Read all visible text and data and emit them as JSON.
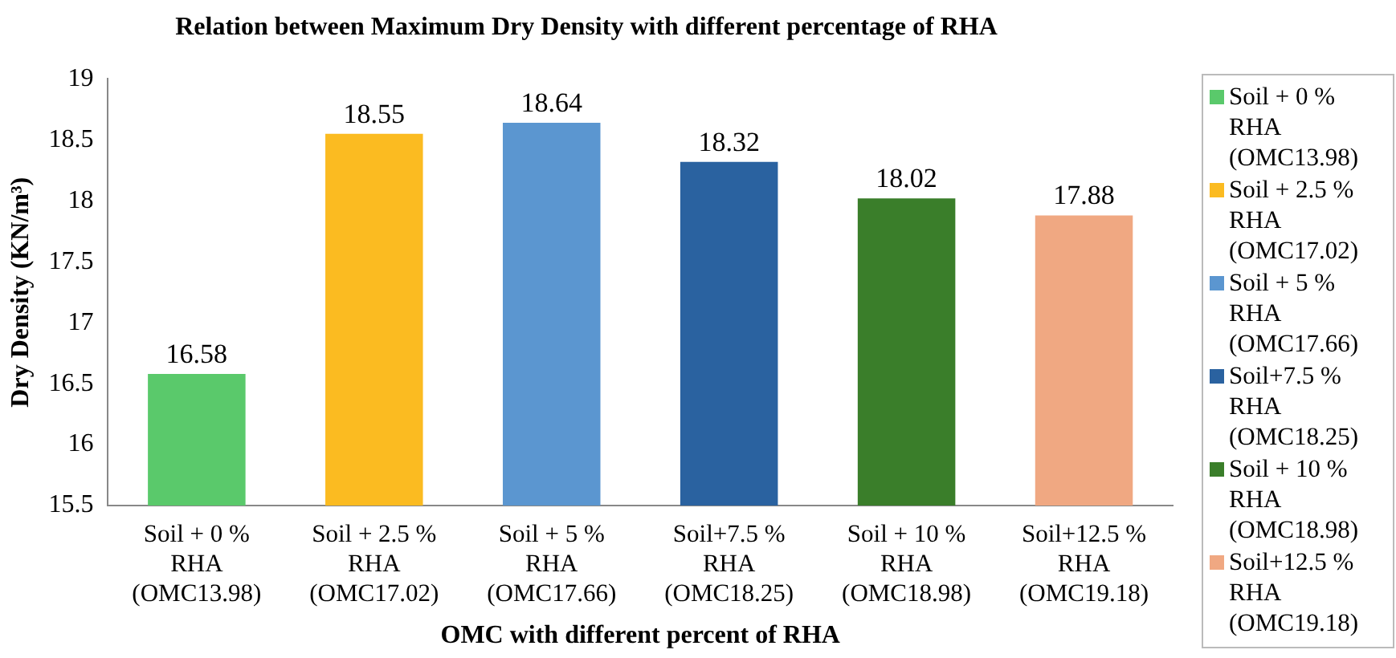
{
  "chart_data": {
    "type": "bar",
    "title": "Relation between Maximum Dry Density with different percentage of RHA",
    "xlabel": "OMC with different percent of RHA",
    "ylabel": "Dry Density (KN/m³)",
    "categories": [
      "Soil + 0 %\nRHA\n(OMC13.98)",
      "Soil + 2.5 %\nRHA\n(OMC17.02)",
      "Soil + 5 %\nRHA\n(OMC17.66)",
      "Soil+7.5 %\nRHA\n(OMC18.25)",
      "Soil + 10 %\nRHA\n(OMC18.98)",
      "Soil+12.5 %\nRHA\n(OMC19.18)"
    ],
    "series": [
      {
        "name": "Soil + 0 % RHA (OMC13.98)",
        "color": "#5ac96b",
        "values": [
          16.58,
          null,
          null,
          null,
          null,
          null
        ]
      },
      {
        "name": "Soil + 2.5 % RHA (OMC17.02)",
        "color": "#fbbb21",
        "values": [
          null,
          18.55,
          null,
          null,
          null,
          null
        ]
      },
      {
        "name": "Soil + 5 % RHA (OMC17.66)",
        "color": "#5b96d0",
        "values": [
          null,
          null,
          18.64,
          null,
          null,
          null
        ]
      },
      {
        "name": "Soil+7.5 % RHA (OMC18.25)",
        "color": "#2a62a0",
        "values": [
          null,
          null,
          null,
          18.32,
          null,
          null
        ]
      },
      {
        "name": "Soil + 10 % RHA (OMC18.98)",
        "color": "#3a7e2a",
        "values": [
          null,
          null,
          null,
          null,
          18.02,
          null
        ]
      },
      {
        "name": "Soil+12.5 % RHA (OMC19.18)",
        "color": "#f0a882",
        "values": [
          null,
          null,
          null,
          null,
          null,
          17.88
        ]
      }
    ],
    "ylim": [
      15.5,
      19
    ],
    "yticks": [
      15.5,
      16,
      16.5,
      17,
      17.5,
      18,
      18.5,
      19
    ],
    "grid": false,
    "legend": "right",
    "data_labels": true
  }
}
